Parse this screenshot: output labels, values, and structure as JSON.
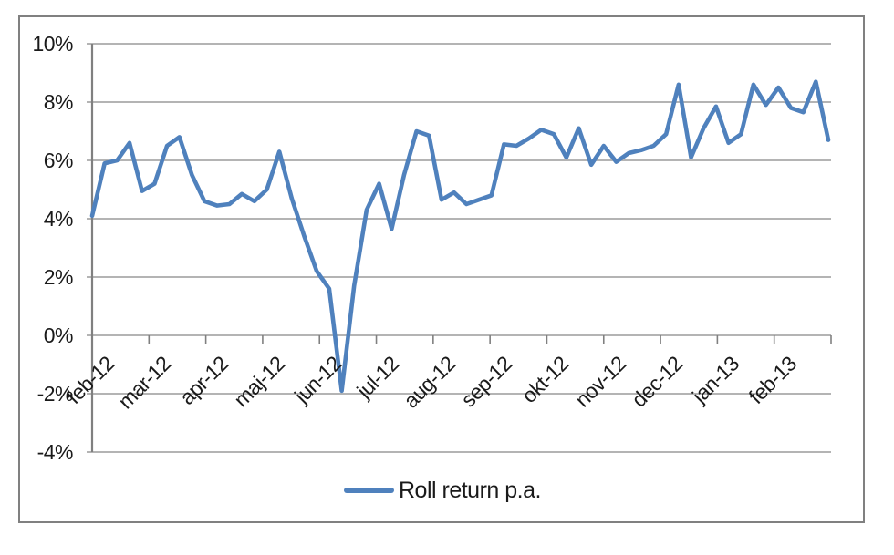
{
  "chart": {
    "legend_label": "Roll return p.a.",
    "line_color": "#4F81BD",
    "gridline_color": "#9C9C9C",
    "axis_color": "#808080",
    "text_color": "#1a1a1a",
    "frame_border_color": "#808080"
  },
  "chart_data": {
    "type": "line",
    "title": "",
    "xlabel": "",
    "ylabel": "",
    "x_tick_labels": [
      "feb-12",
      "mar-12",
      "apr-12",
      "maj-12",
      "jun-12",
      "jul-12",
      "aug-12",
      "sep-12",
      "okt-12",
      "nov-12",
      "dec-12",
      "jan-13",
      "feb-13"
    ],
    "y_tick_labels": [
      "10%",
      "8%",
      "6%",
      "4%",
      "2%",
      "0%",
      "-2%",
      "-4%"
    ],
    "ylim": [
      -4,
      10
    ],
    "y_step": 2,
    "y_unit": "%",
    "grid": "horizontal",
    "legend_position": "bottom-center",
    "series": [
      {
        "name": "Roll return p.a.",
        "values": [
          4.1,
          5.9,
          6.0,
          6.6,
          4.95,
          5.2,
          6.5,
          6.8,
          5.5,
          4.6,
          4.45,
          4.5,
          4.85,
          4.6,
          5.0,
          6.3,
          4.7,
          3.4,
          2.2,
          1.6,
          -1.9,
          1.7,
          4.3,
          5.2,
          3.65,
          5.5,
          7.0,
          6.85,
          4.65,
          4.9,
          4.5,
          4.65,
          4.8,
          6.55,
          6.5,
          6.75,
          7.05,
          6.9,
          6.1,
          7.1,
          5.85,
          6.5,
          5.95,
          6.25,
          6.35,
          6.5,
          6.9,
          8.6,
          6.1,
          7.1,
          7.85,
          6.6,
          6.9,
          8.6,
          7.9,
          8.5,
          7.8,
          7.65,
          8.7,
          6.7
        ]
      }
    ]
  }
}
